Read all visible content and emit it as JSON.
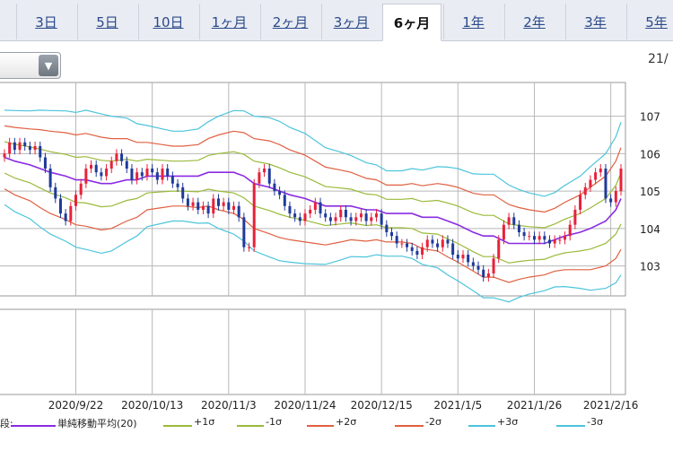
{
  "tabs": [
    {
      "label": "3日",
      "active": false
    },
    {
      "label": "5日",
      "active": false
    },
    {
      "label": "10日",
      "active": false
    },
    {
      "label": "1ヶ月",
      "active": false
    },
    {
      "label": "2ヶ月",
      "active": false
    },
    {
      "label": "3ヶ月",
      "active": false
    },
    {
      "label": "6ヶ月",
      "active": true
    },
    {
      "label": "1年",
      "active": false
    },
    {
      "label": "2年",
      "active": false
    },
    {
      "label": "3年",
      "active": false
    },
    {
      "label": "5年",
      "active": false
    }
  ],
  "header": {
    "date_fragment": "21/"
  },
  "legend": {
    "prefix": "段:",
    "items": [
      {
        "label": "単純移動平均(20)",
        "color": "#8a2be2"
      },
      {
        "label": "+1σ",
        "color": "#9aba3a"
      },
      {
        "label": "-1σ",
        "color": "#9aba3a"
      },
      {
        "label": "+2σ",
        "color": "#e06040"
      },
      {
        "label": "-2σ",
        "color": "#e06040"
      },
      {
        "label": "+3σ",
        "color": "#4cc4dc"
      },
      {
        "label": "-3σ",
        "color": "#4cc4dc"
      }
    ]
  },
  "colors": {
    "up": "#e8213a",
    "down": "#1f3a9a",
    "sma": "#8a2be2",
    "sigma1": "#9aba3a",
    "sigma2": "#e06040",
    "sigma3": "#4cc4dc",
    "grid": "#b8b8b8"
  },
  "chart_data": {
    "type": "candlestick",
    "y_ticks": [
      "107",
      "106",
      "105",
      "104",
      "103"
    ],
    "ylim": [
      102.2,
      107.9
    ],
    "x_tick_labels": [
      "2020/9/22",
      "2020/10/13",
      "2020/11/3",
      "2020/11/24",
      "2020/12/15",
      "2021/1/5",
      "2021/1/26",
      "2021/2/16"
    ],
    "x_tick_positions": [
      14,
      29,
      44,
      59,
      74,
      89,
      104,
      119
    ],
    "n_bars": 122,
    "close": [
      106.0,
      106.3,
      106.1,
      106.3,
      106.2,
      106.1,
      106.2,
      105.9,
      105.6,
      105.1,
      104.8,
      104.4,
      104.2,
      104.6,
      104.9,
      105.2,
      105.6,
      105.7,
      105.5,
      105.4,
      105.6,
      105.8,
      106.0,
      105.8,
      105.6,
      105.3,
      105.5,
      105.4,
      105.6,
      105.5,
      105.3,
      105.6,
      105.4,
      105.2,
      105.1,
      104.8,
      104.6,
      104.7,
      104.5,
      104.6,
      104.4,
      104.8,
      104.6,
      104.7,
      104.5,
      104.6,
      104.3,
      103.5,
      103.5,
      105.2,
      105.5,
      105.6,
      105.2,
      105.0,
      104.9,
      104.6,
      104.4,
      104.3,
      104.2,
      104.4,
      104.5,
      104.7,
      104.4,
      104.3,
      104.2,
      104.3,
      104.5,
      104.3,
      104.2,
      104.3,
      104.4,
      104.2,
      104.3,
      104.4,
      104.1,
      103.9,
      103.8,
      103.6,
      103.6,
      103.5,
      103.4,
      103.3,
      103.5,
      103.7,
      103.6,
      103.5,
      103.7,
      103.6,
      103.3,
      103.2,
      103.3,
      103.1,
      103.0,
      102.9,
      102.7,
      102.8,
      103.2,
      103.7,
      104.1,
      104.3,
      104.1,
      103.9,
      103.8,
      103.8,
      103.7,
      103.8,
      103.7,
      103.6,
      103.7,
      103.7,
      103.8,
      104.1,
      104.5,
      104.9,
      105.1,
      105.3,
      105.5,
      105.6,
      104.8,
      104.7,
      105.0,
      105.6,
      106.0
    ],
    "band_mid": [
      105.9,
      105.8,
      105.7,
      105.6,
      105.5,
      105.4,
      105.3,
      105.3,
      105.2,
      105.2,
      105.3,
      105.3,
      105.4,
      105.4,
      105.4,
      105.4,
      105.4,
      105.5,
      105.5,
      105.5,
      105.4,
      105.2,
      105.1,
      105.0,
      104.9,
      104.8,
      104.7,
      104.6,
      104.6,
      104.6,
      104.5,
      104.5,
      104.4,
      104.4,
      104.4,
      104.3,
      104.3,
      104.2,
      104.1,
      103.9,
      103.8,
      103.8,
      103.6,
      103.6,
      103.6,
      103.6,
      103.7,
      103.8,
      103.9,
      104.0,
      104.2,
      104.5,
      104.8
    ],
    "band_step": 2.35,
    "band_sigma": [
      0.42,
      0.45,
      0.48,
      0.52,
      0.55,
      0.58,
      0.6,
      0.62,
      0.62,
      0.6,
      0.55,
      0.5,
      0.45,
      0.42,
      0.4,
      0.4,
      0.42,
      0.45,
      0.5,
      0.55,
      0.58,
      0.6,
      0.62,
      0.62,
      0.6,
      0.58,
      0.55,
      0.52,
      0.48,
      0.45,
      0.42,
      0.4,
      0.38,
      0.38,
      0.4,
      0.42,
      0.45,
      0.48,
      0.5,
      0.52,
      0.55,
      0.55,
      0.52,
      0.48,
      0.45,
      0.42,
      0.42,
      0.45,
      0.5,
      0.55,
      0.6,
      0.65,
      0.68
    ]
  }
}
